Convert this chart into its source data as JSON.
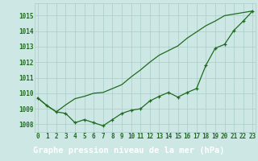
{
  "line_markers": [
    1009.7,
    1009.2,
    1008.8,
    1008.7,
    1008.1,
    1008.3,
    1008.1,
    1007.9,
    1008.3,
    1008.7,
    1008.9,
    1009.0,
    1009.5,
    1009.8,
    1010.05,
    1009.75,
    1010.05,
    1010.3,
    1011.8,
    1012.9,
    1013.15,
    1014.05,
    1014.65,
    1015.3
  ],
  "line_smooth": [
    1009.7,
    1009.2,
    1008.8,
    1009.25,
    1009.65,
    1009.8,
    1010.0,
    1010.05,
    1010.3,
    1010.55,
    1011.05,
    1011.5,
    1012.0,
    1012.45,
    1012.75,
    1013.05,
    1013.55,
    1013.95,
    1014.35,
    1014.65,
    1015.0,
    1015.1,
    1015.2,
    1015.3
  ],
  "x": [
    0,
    1,
    2,
    3,
    4,
    5,
    6,
    7,
    8,
    9,
    10,
    11,
    12,
    13,
    14,
    15,
    16,
    17,
    18,
    19,
    20,
    21,
    22,
    23
  ],
  "xlabels": [
    "0",
    "1",
    "2",
    "3",
    "4",
    "5",
    "6",
    "7",
    "8",
    "9",
    "10",
    "11",
    "12",
    "13",
    "14",
    "15",
    "16",
    "17",
    "18",
    "19",
    "20",
    "21",
    "22",
    "23"
  ],
  "yticks": [
    1008,
    1009,
    1010,
    1011,
    1012,
    1013,
    1014,
    1015
  ],
  "ylim": [
    1007.5,
    1015.8
  ],
  "line_color": "#1e6b1e",
  "bg_color": "#cde8e4",
  "grid_color": "#a8ccc8",
  "xlabel": "Graphe pression niveau de la mer (hPa)",
  "xlabel_bg": "#1a5c1a",
  "xlabel_fg": "#ffffff",
  "tick_fontsize": 5.5,
  "label_fontsize": 7.5
}
